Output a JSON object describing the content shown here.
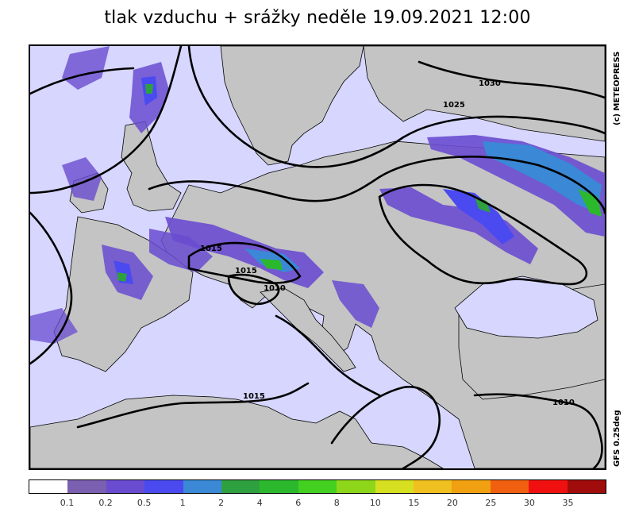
{
  "title": "tlak vzduchu + srážky  neděle 19.09.2021 12:00",
  "copyright": "(c) METEOPRESS",
  "model": "GFS 0.25deg",
  "colors": {
    "sea": "#d6d6ff",
    "land": "#c4c4c4",
    "isobar": "#000000"
  },
  "isobar_labels": [
    "1030",
    "1025",
    "1015",
    "1015",
    "1010",
    "1015",
    "1010"
  ],
  "legend": {
    "colors": [
      "#ffffff",
      "#7b5fb0",
      "#6a4cd0",
      "#4a4af0",
      "#3a88d6",
      "#2ea040",
      "#2cb82c",
      "#44d020",
      "#8ed61a",
      "#d6e020",
      "#f0c020",
      "#f0a010",
      "#f06010",
      "#f01010",
      "#a00c0c"
    ],
    "labels": [
      "0.1",
      "0.2",
      "0.5",
      "1",
      "2",
      "4",
      "6",
      "8",
      "10",
      "15",
      "20",
      "25",
      "30",
      "35"
    ]
  }
}
